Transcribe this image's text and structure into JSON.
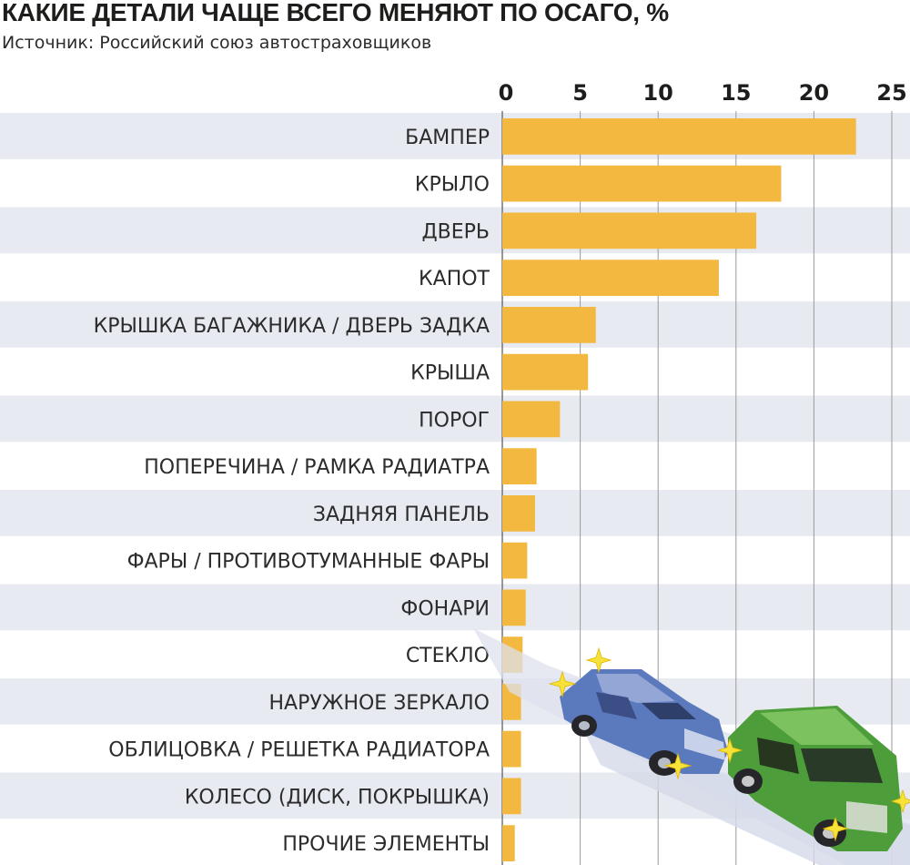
{
  "title": "КАКИЕ ДЕТАЛИ ЧАЩЕ ВСЕГО МЕНЯЮТ ПО ОСАГО, %",
  "subtitle": "Источник: Российский союз автостраховщиков",
  "colors": {
    "bar": "#f3b840",
    "row_band": "#e8eaf1",
    "grid": "#9a9a9a",
    "text": "#2b2b2b",
    "car_blue": "#5b79bd",
    "car_green": "#4d9e3a"
  },
  "chart_data": {
    "type": "bar",
    "orientation": "horizontal",
    "title": "КАКИЕ ДЕТАЛИ ЧАЩЕ ВСЕГО МЕНЯЮТ ПО ОСАГО, %",
    "xlim": [
      0,
      25
    ],
    "ticks": [
      0,
      5,
      10,
      15,
      20,
      25
    ],
    "grid": true,
    "categories": [
      "БАМПЕР",
      "КРЫЛО",
      "ДВЕРЬ",
      "КАПОТ",
      "КРЫШКА БАГАЖНИКА / ДВЕРЬ ЗАДКА",
      "КРЫША",
      "ПОРОГ",
      "ПОПЕРЕЧИНА / РАМКА РАДИАТРА",
      "ЗАДНЯЯ ПАНЕЛЬ",
      "ФАРЫ / ПРОТИВОТУМАННЫЕ ФАРЫ",
      "ФОНАРИ",
      "СТЕКЛО",
      "НАРУЖНОЕ ЗЕРКАЛО",
      "ОБЛИЦОВКА / РЕШЕТКА РАДИАТОРА",
      "КОЛЕСО (ДИСК, ПОКРЫШКА)",
      "ПРОЧИЕ ЭЛЕМЕНТЫ"
    ],
    "values": [
      22.7,
      17.9,
      16.3,
      13.9,
      6.0,
      5.5,
      3.7,
      2.2,
      2.1,
      1.6,
      1.5,
      1.3,
      1.2,
      1.2,
      1.2,
      0.8
    ]
  }
}
